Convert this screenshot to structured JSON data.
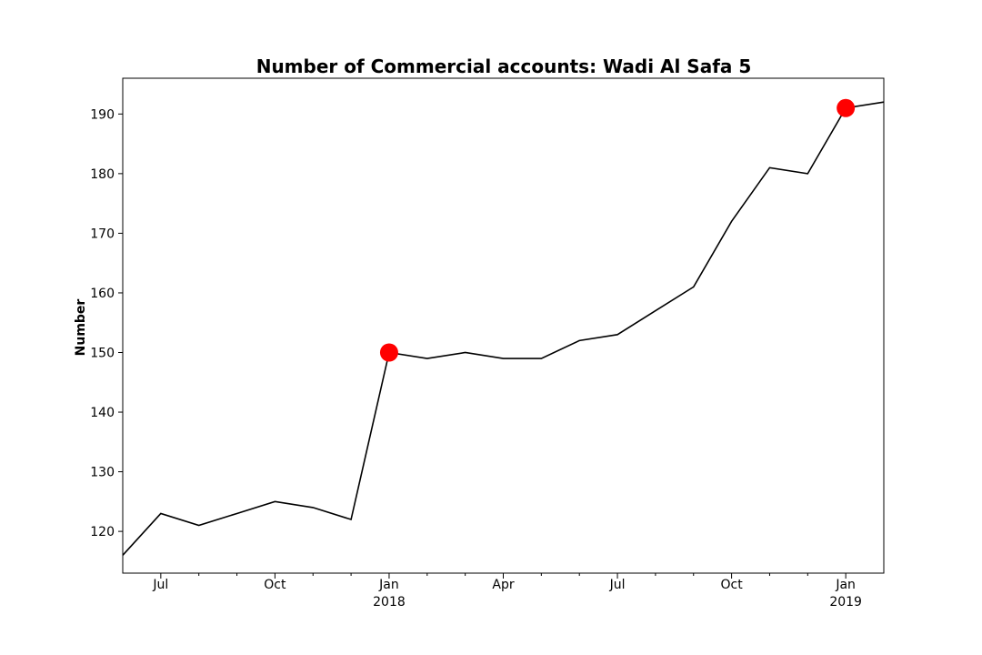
{
  "chart_data": {
    "type": "line",
    "title": "Number of Commercial accounts: Wadi Al Safa 5",
    "xlabel": "",
    "ylabel": "Number",
    "xlim": [
      "2017-06-01",
      "2019-02-01"
    ],
    "ylim": [
      113,
      196
    ],
    "yticks": [
      120,
      130,
      140,
      150,
      160,
      170,
      180,
      190
    ],
    "xticks_major": [
      {
        "date": "2017-07-01",
        "label": "Jul",
        "sublabel": ""
      },
      {
        "date": "2017-10-01",
        "label": "Oct",
        "sublabel": ""
      },
      {
        "date": "2018-01-01",
        "label": "Jan",
        "sublabel": "2018"
      },
      {
        "date": "2018-04-01",
        "label": "Apr",
        "sublabel": ""
      },
      {
        "date": "2018-07-01",
        "label": "Jul",
        "sublabel": ""
      },
      {
        "date": "2018-10-01",
        "label": "Oct",
        "sublabel": ""
      },
      {
        "date": "2019-01-01",
        "label": "Jan",
        "sublabel": "2019"
      }
    ],
    "xticks_minor": [
      "2017-08-01",
      "2017-09-01",
      "2017-11-01",
      "2017-12-01",
      "2018-02-01",
      "2018-03-01",
      "2018-05-01",
      "2018-06-01",
      "2018-08-01",
      "2018-09-01",
      "2018-11-01",
      "2018-12-01"
    ],
    "grid": false,
    "series": [
      {
        "color": "#000000",
        "x": [
          "2017-06-01",
          "2017-07-01",
          "2017-08-01",
          "2017-09-01",
          "2017-10-01",
          "2017-11-01",
          "2017-12-01",
          "2018-01-01",
          "2018-02-01",
          "2018-03-01",
          "2018-04-01",
          "2018-05-01",
          "2018-06-01",
          "2018-07-01",
          "2018-08-01",
          "2018-09-01",
          "2018-10-01",
          "2018-11-01",
          "2018-12-01",
          "2019-01-01",
          "2019-02-01"
        ],
        "values": [
          116,
          123,
          121,
          123,
          125,
          124,
          122,
          150,
          149,
          150,
          149,
          149,
          152,
          153,
          157,
          161,
          172,
          181,
          180,
          191,
          192
        ]
      }
    ],
    "highlights": {
      "color": "#ff0000",
      "x": [
        "2018-01-01",
        "2019-01-01"
      ],
      "values": [
        150,
        191
      ]
    }
  }
}
